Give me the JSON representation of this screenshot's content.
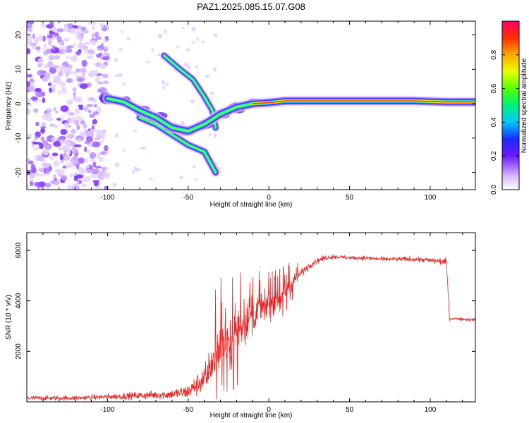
{
  "chart_data": [
    {
      "type": "heatmap",
      "title": "PAZ1.2025.085.15.07.G08",
      "xlabel": "Height of straight line (km)",
      "ylabel": "Frequency (Hz)",
      "xlim": [
        -150,
        128
      ],
      "ylim": [
        -25,
        24
      ],
      "xticks": [
        -100,
        -50,
        0,
        50,
        100
      ],
      "yticks": [
        20,
        10,
        0,
        -10,
        -20
      ],
      "colorbar": {
        "label": "Normalized spectral amplitude",
        "range": [
          0,
          1
        ],
        "ticks": [
          0.0,
          0.2,
          0.4,
          0.6,
          0.8
        ],
        "tick_labels": [
          "0.0",
          "0.2",
          "0.4",
          "0.6",
          "0.8"
        ]
      },
      "features": [
        {
          "name": "noisy-region",
          "x": [
            -150,
            -100
          ],
          "y": [
            -25,
            24
          ],
          "amplitude": 0.15
        },
        {
          "name": "main-trace",
          "points": [
            [
              -100,
              1.5
            ],
            [
              -90,
              0.5
            ],
            [
              -80,
              -2
            ],
            [
              -70,
              -4
            ],
            [
              -60,
              -7
            ],
            [
              -50,
              -8
            ],
            [
              -40,
              -6
            ],
            [
              -30,
              -3
            ],
            [
              -20,
              -1
            ],
            [
              -10,
              0
            ],
            [
              0,
              0.3
            ],
            [
              10,
              0.8
            ],
            [
              30,
              0.8
            ],
            [
              60,
              0.8
            ],
            [
              90,
              0.8
            ],
            [
              110,
              0.5
            ],
            [
              128,
              0.5
            ]
          ]
        },
        {
          "name": "upper-branch",
          "points": [
            [
              -65,
              14
            ],
            [
              -55,
              10
            ],
            [
              -47,
              7
            ],
            [
              -40,
              2
            ],
            [
              -35,
              -2
            ],
            [
              -33,
              -7
            ]
          ]
        },
        {
          "name": "lower-branch",
          "points": [
            [
              -80,
              -4
            ],
            [
              -70,
              -6
            ],
            [
              -60,
              -9
            ],
            [
              -50,
              -12
            ],
            [
              -40,
              -14
            ],
            [
              -33,
              -20
            ]
          ]
        }
      ]
    },
    {
      "type": "line",
      "xlabel": "Height of straight line (km)",
      "ylabel": "SNR (10 * v/v)",
      "xlim": [
        -150,
        128
      ],
      "ylim": [
        0,
        6700
      ],
      "xticks": [
        -100,
        -50,
        0,
        50,
        100
      ],
      "yticks": [
        2000,
        4000,
        6000
      ],
      "series": [
        {
          "name": "SNR",
          "color": "#ee2222",
          "x": [
            -150,
            -120,
            -100,
            -80,
            -60,
            -50,
            -40,
            -35,
            -30,
            -25,
            -20,
            -15,
            -10,
            -5,
            0,
            5,
            10,
            15,
            20,
            25,
            30,
            35,
            40,
            50,
            60,
            70,
            80,
            90,
            100,
            110,
            112,
            115,
            128
          ],
          "y": [
            150,
            150,
            200,
            250,
            300,
            400,
            900,
            1600,
            2200,
            2200,
            2800,
            3100,
            3400,
            3700,
            3800,
            4100,
            4300,
            4800,
            5100,
            5400,
            5600,
            5700,
            5750,
            5700,
            5700,
            5650,
            5650,
            5650,
            5600,
            5550,
            3300,
            3300,
            3250
          ],
          "noise": [
            100,
            100,
            120,
            150,
            200,
            300,
            600,
            900,
            1000,
            1000,
            900,
            800,
            700,
            600,
            500,
            450,
            400,
            300,
            200,
            150,
            120,
            100,
            90,
            90,
            90,
            90,
            100,
            110,
            120,
            150,
            80,
            70,
            70
          ]
        }
      ]
    }
  ]
}
